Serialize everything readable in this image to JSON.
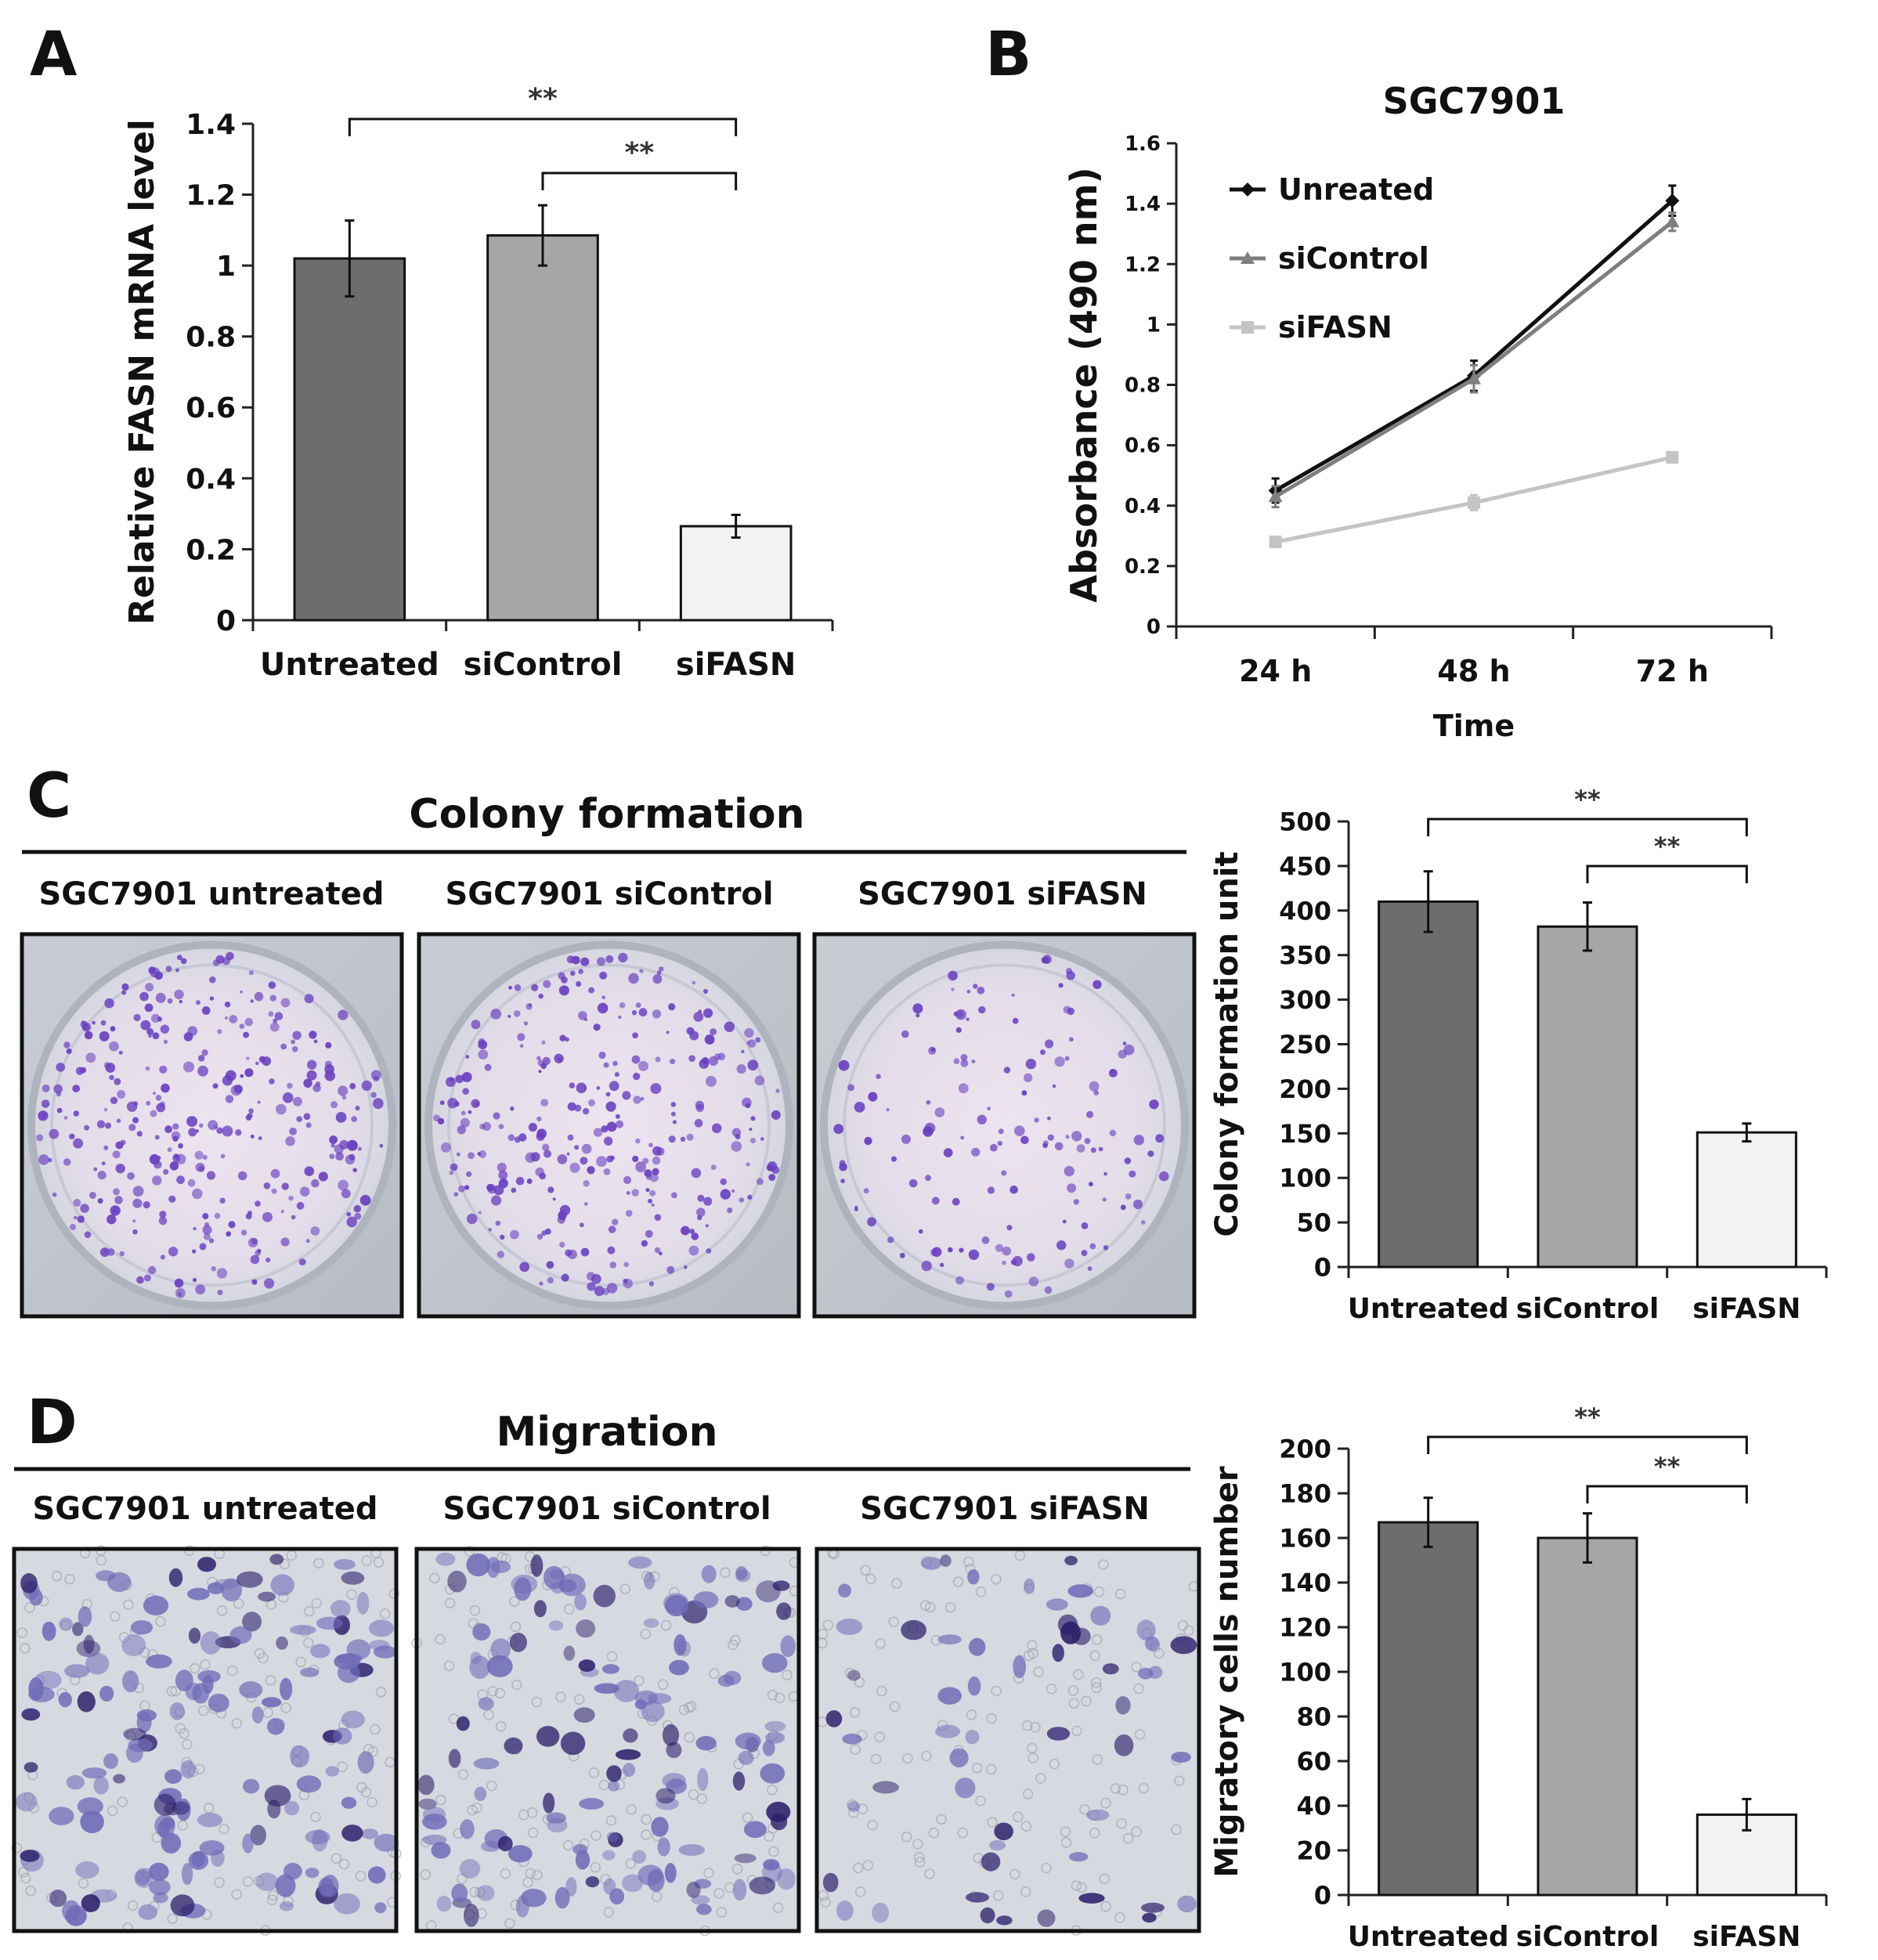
{
  "panels": {
    "a": "A",
    "b": "B",
    "c": "C",
    "d": "D"
  },
  "colors": {
    "untreated": "#6d6d6d",
    "sicontrol": "#a6a6a6",
    "sifasn": "#f2f2f2",
    "line_untreated": "#111111",
    "line_sicontrol": "#7f7f7f",
    "line_sifasn": "#c4c4c4",
    "colony_stain": "#6a3fc0",
    "migration_stain": "#3f2f8f"
  },
  "significance": "**",
  "colony": {
    "section_title": "Colony formation",
    "images": [
      {
        "label": "SGC7901 untreated"
      },
      {
        "label": "SGC7901 siControl"
      },
      {
        "label": "SGC7901 siFASN"
      }
    ]
  },
  "migration": {
    "section_title": "Migration",
    "images": [
      {
        "label": "SGC7901 untreated"
      },
      {
        "label": "SGC7901 siControl"
      },
      {
        "label": "SGC7901 siFASN"
      }
    ]
  },
  "chart_data": [
    {
      "id": "A",
      "type": "bar",
      "title": "",
      "xlabel": "",
      "ylabel": "Relative FASN mRNA level",
      "categories": [
        "Untreated",
        "siControl",
        "siFASN"
      ],
      "values": [
        1.02,
        1.085,
        0.265
      ],
      "errors": [
        0.107,
        0.085,
        0.032
      ],
      "ylim": [
        0,
        1.4
      ],
      "yticks": [
        "0",
        "0.2",
        "0.4",
        "0.6",
        "0.8",
        "1",
        "1.2",
        "1.4"
      ],
      "grid": false,
      "brackets": [
        {
          "from": 0,
          "to": 2,
          "label": "**"
        },
        {
          "from": 1,
          "to": 2,
          "label": "**"
        }
      ]
    },
    {
      "id": "B",
      "type": "line",
      "title": "SGC7901",
      "xlabel": "Time",
      "ylabel": "Absorbance (490 nm)",
      "categories": [
        "24 h",
        "48 h",
        "72 h"
      ],
      "series": [
        {
          "name": "Unreated",
          "values": [
            0.45,
            0.83,
            1.41
          ],
          "errors": [
            0.04,
            0.05,
            0.05
          ]
        },
        {
          "name": "siControl",
          "values": [
            0.43,
            0.82,
            1.34
          ],
          "errors": [
            0.035,
            0.045,
            0.03
          ]
        },
        {
          "name": "siFASN",
          "values": [
            0.28,
            0.41,
            0.56
          ],
          "errors": [
            0.015,
            0.025,
            0.015
          ]
        }
      ],
      "ylim": [
        0,
        1.6
      ],
      "yticks": [
        "0",
        "0.2",
        "0.4",
        "0.6",
        "0.8",
        "1",
        "1.2",
        "1.4",
        "1.6"
      ],
      "legend": "top-left",
      "grid": false
    },
    {
      "id": "C",
      "type": "bar",
      "title": "",
      "xlabel": "",
      "ylabel": "Colony formation unit",
      "categories": [
        "Untreated",
        "siControl",
        "siFASN"
      ],
      "values": [
        410,
        382,
        151
      ],
      "errors": [
        34,
        27,
        10
      ],
      "ylim": [
        0,
        500
      ],
      "yticks": [
        "0",
        "50",
        "100",
        "150",
        "200",
        "250",
        "300",
        "350",
        "400",
        "450",
        "500"
      ],
      "grid": false,
      "brackets": [
        {
          "from": 0,
          "to": 2,
          "label": "**"
        },
        {
          "from": 1,
          "to": 2,
          "label": "**"
        }
      ]
    },
    {
      "id": "D",
      "type": "bar",
      "title": "",
      "xlabel": "",
      "ylabel": "Migratory cells number",
      "categories": [
        "Untreated",
        "siControl",
        "siFASN"
      ],
      "values": [
        167,
        160,
        36
      ],
      "errors": [
        11,
        11,
        7
      ],
      "ylim": [
        0,
        200
      ],
      "yticks": [
        "0",
        "20",
        "40",
        "60",
        "80",
        "100",
        "120",
        "140",
        "160",
        "180",
        "200"
      ],
      "grid": false,
      "brackets": [
        {
          "from": 0,
          "to": 2,
          "label": "**"
        },
        {
          "from": 1,
          "to": 2,
          "label": "**"
        }
      ]
    }
  ]
}
